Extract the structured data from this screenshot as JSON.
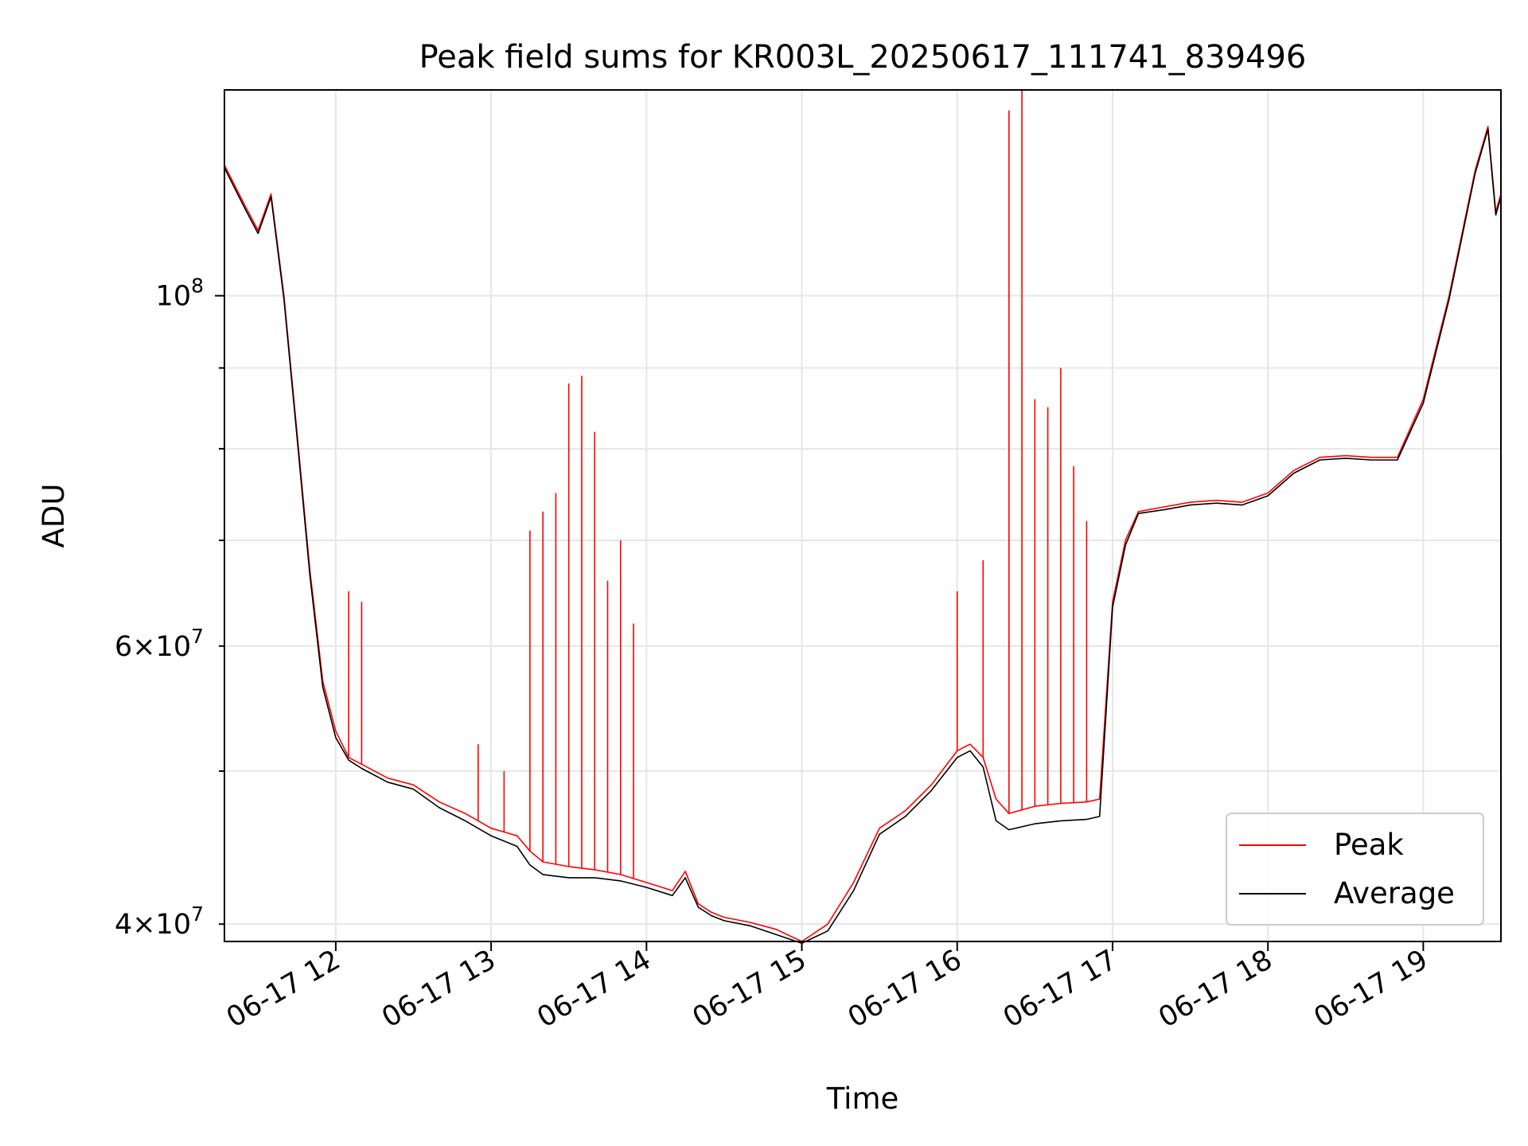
{
  "chart_data": {
    "type": "line",
    "title": "Peak field sums for KR003L_20250617_111741_839496",
    "xlabel": "Time",
    "ylabel": "ADU",
    "yscale": "log",
    "grid": true,
    "legend_placement": "lower-right",
    "xlim": [
      "2025-06-17 11:17",
      "2025-06-17 19:30"
    ],
    "ylim": [
      39000000,
      135000000
    ],
    "x_ticks": [
      "06-17 12",
      "06-17 13",
      "06-17 14",
      "06-17 15",
      "06-17 16",
      "06-17 17",
      "06-17 18",
      "06-17 19"
    ],
    "y_ticks_major": [
      {
        "value": 100000000,
        "base": "10",
        "exp": "8",
        "mult": ""
      }
    ],
    "y_ticks_minor_labeled": [
      {
        "value": 40000000,
        "mult": "4",
        "base": "10",
        "exp": "7"
      },
      {
        "value": 60000000,
        "mult": "6",
        "base": "10",
        "exp": "7"
      }
    ],
    "y_ticks_minor_unlabeled": [
      50000000,
      70000000,
      80000000,
      90000000
    ],
    "x": [
      "11:17",
      "11:25",
      "11:30",
      "11:35",
      "11:40",
      "11:45",
      "11:50",
      "11:55",
      "12:00",
      "12:05",
      "12:10",
      "12:20",
      "12:30",
      "12:40",
      "12:50",
      "13:00",
      "13:10",
      "13:15",
      "13:20",
      "13:30",
      "13:40",
      "13:50",
      "14:00",
      "14:10",
      "14:15",
      "14:20",
      "14:25",
      "14:30",
      "14:40",
      "14:50",
      "15:00",
      "15:10",
      "15:20",
      "15:30",
      "15:40",
      "15:50",
      "16:00",
      "16:05",
      "16:10",
      "16:15",
      "16:20",
      "16:30",
      "16:40",
      "16:50",
      "16:55",
      "17:00",
      "17:05",
      "17:10",
      "17:20",
      "17:30",
      "17:40",
      "17:50",
      "18:00",
      "18:10",
      "18:20",
      "18:30",
      "18:40",
      "18:50",
      "19:00",
      "19:10",
      "19:20",
      "19:25",
      "19:28",
      "19:30"
    ],
    "series": [
      {
        "name": "Peak",
        "color": "#ff0000",
        "values": [
          121000000,
          114000000,
          110000000,
          116000000,
          100000000,
          82000000,
          67000000,
          57000000,
          53000000,
          51000000,
          50500000,
          49500000,
          49000000,
          47800000,
          47000000,
          46000000,
          45500000,
          44500000,
          43800000,
          43500000,
          43300000,
          43000000,
          42500000,
          42000000,
          43200000,
          41200000,
          40700000,
          40400000,
          40100000,
          39700000,
          39000000,
          40000000,
          42500000,
          46000000,
          47200000,
          49000000,
          51500000,
          52000000,
          51000000,
          48000000,
          47000000,
          47500000,
          47700000,
          47800000,
          48000000,
          64000000,
          70000000,
          73000000,
          73500000,
          74000000,
          74200000,
          74000000,
          75000000,
          77500000,
          79000000,
          79200000,
          79000000,
          79000000,
          86000000,
          100000000,
          120000000,
          128000000,
          113000000,
          116000000
        ]
      },
      {
        "name": "Average",
        "color": "#000000",
        "values": [
          120500000,
          113500000,
          109500000,
          115500000,
          99500000,
          81500000,
          66500000,
          56500000,
          52500000,
          50800000,
          50200000,
          49200000,
          48700000,
          47400000,
          46500000,
          45500000,
          44800000,
          43600000,
          43000000,
          42800000,
          42800000,
          42600000,
          42200000,
          41700000,
          42800000,
          41000000,
          40500000,
          40200000,
          39900000,
          39400000,
          38900000,
          39600000,
          42000000,
          45600000,
          46800000,
          48600000,
          51000000,
          51500000,
          50300000,
          46500000,
          45900000,
          46300000,
          46500000,
          46600000,
          46800000,
          63500000,
          69500000,
          72800000,
          73200000,
          73700000,
          73900000,
          73700000,
          74700000,
          77200000,
          78700000,
          78900000,
          78700000,
          78700000,
          85500000,
          99500000,
          119500000,
          127500000,
          112500000,
          115500000
        ]
      }
    ],
    "peak_spikes": [
      {
        "x": "12:05",
        "y": 65000000
      },
      {
        "x": "12:10",
        "y": 64000000
      },
      {
        "x": "12:55",
        "y": 52000000
      },
      {
        "x": "13:05",
        "y": 50000000
      },
      {
        "x": "13:15",
        "y": 71000000
      },
      {
        "x": "13:20",
        "y": 73000000
      },
      {
        "x": "13:25",
        "y": 75000000
      },
      {
        "x": "13:30",
        "y": 88000000
      },
      {
        "x": "13:35",
        "y": 89000000
      },
      {
        "x": "13:40",
        "y": 82000000
      },
      {
        "x": "13:45",
        "y": 66000000
      },
      {
        "x": "13:50",
        "y": 70000000
      },
      {
        "x": "13:55",
        "y": 62000000
      },
      {
        "x": "16:00",
        "y": 65000000
      },
      {
        "x": "16:10",
        "y": 68000000
      },
      {
        "x": "16:20",
        "y": 131000000
      },
      {
        "x": "16:25",
        "y": 135000000
      },
      {
        "x": "16:30",
        "y": 86000000
      },
      {
        "x": "16:35",
        "y": 85000000
      },
      {
        "x": "16:40",
        "y": 90000000
      },
      {
        "x": "16:45",
        "y": 78000000
      },
      {
        "x": "16:50",
        "y": 72000000
      }
    ]
  }
}
